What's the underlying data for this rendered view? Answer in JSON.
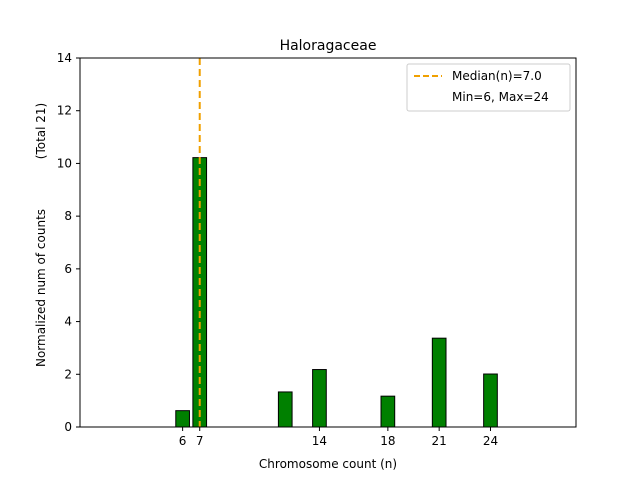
{
  "chart_data": {
    "type": "bar",
    "title": "Haloragaceae",
    "xlabel": "Chromosome count (n)",
    "ylabel": "Normalized num of counts",
    "ylabel_secondary": "(Total 21)",
    "xlim": [
      0,
      29
    ],
    "ylim": [
      0,
      14
    ],
    "x_ticks": [
      6,
      7,
      14,
      18,
      21,
      24
    ],
    "y_ticks": [
      0,
      2,
      4,
      6,
      8,
      10,
      12,
      14
    ],
    "bars": [
      {
        "x": 6,
        "value": 0.62
      },
      {
        "x": 7,
        "value": 10.22
      },
      {
        "x": 12,
        "value": 1.33
      },
      {
        "x": 14,
        "value": 2.18
      },
      {
        "x": 18,
        "value": 1.17
      },
      {
        "x": 21,
        "value": 3.37
      },
      {
        "x": 24,
        "value": 2.01
      }
    ],
    "median_line": {
      "x": 7.0,
      "label": "Median(n)=7.0",
      "color": "#f0a000"
    },
    "legend": {
      "position": "top-right",
      "entries": [
        "Median(n)=7.0",
        "Min=6, Max=24"
      ]
    },
    "bar_color": "#008000",
    "bar_edge_color": "#000000"
  }
}
